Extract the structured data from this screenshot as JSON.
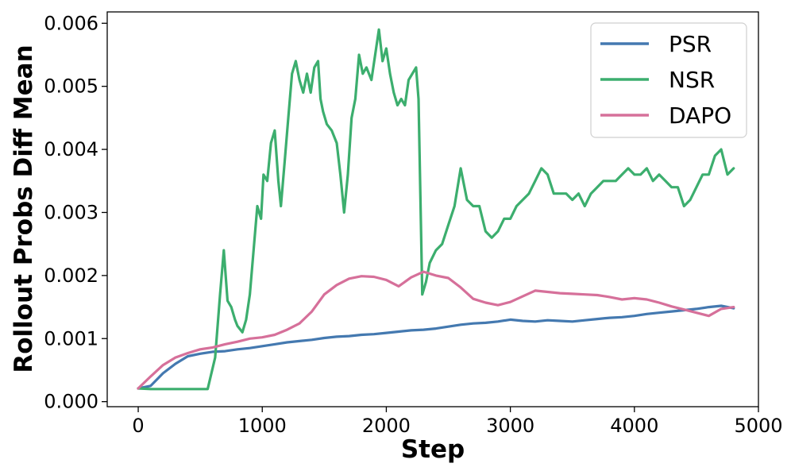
{
  "chart_data": {
    "type": "line",
    "title": "",
    "xlabel": "Step",
    "ylabel": "Rollout Probs Diff Mean",
    "xlim": [
      -250,
      5000
    ],
    "ylim": [
      -8e-05,
      0.00618
    ],
    "xticks": [
      0,
      1000,
      2000,
      3000,
      4000,
      5000
    ],
    "xtick_labels": [
      "0",
      "1000",
      "2000",
      "3000",
      "4000",
      "5000"
    ],
    "yticks": [
      0,
      0.001,
      0.002,
      0.003,
      0.004,
      0.005,
      0.006
    ],
    "ytick_labels": [
      "0.000",
      "0.001",
      "0.002",
      "0.003",
      "0.004",
      "0.005",
      "0.006"
    ],
    "grid": false,
    "legend": "top-right",
    "series": [
      {
        "name": "PSR",
        "color": "#4479b0",
        "points": [
          [
            0,
            0.00021
          ],
          [
            100,
            0.00025
          ],
          [
            200,
            0.00045
          ],
          [
            300,
            0.0006
          ],
          [
            400,
            0.00072
          ],
          [
            500,
            0.00076
          ],
          [
            600,
            0.00079
          ],
          [
            700,
            0.0008
          ],
          [
            800,
            0.00083
          ],
          [
            900,
            0.00085
          ],
          [
            1000,
            0.00088
          ],
          [
            1100,
            0.00091
          ],
          [
            1200,
            0.00094
          ],
          [
            1300,
            0.00096
          ],
          [
            1400,
            0.00098
          ],
          [
            1500,
            0.00101
          ],
          [
            1600,
            0.00103
          ],
          [
            1700,
            0.00104
          ],
          [
            1800,
            0.00106
          ],
          [
            1900,
            0.00107
          ],
          [
            2000,
            0.00109
          ],
          [
            2100,
            0.00111
          ],
          [
            2200,
            0.00113
          ],
          [
            2300,
            0.00114
          ],
          [
            2400,
            0.00116
          ],
          [
            2500,
            0.00119
          ],
          [
            2600,
            0.00122
          ],
          [
            2700,
            0.00124
          ],
          [
            2800,
            0.00125
          ],
          [
            2900,
            0.00127
          ],
          [
            3000,
            0.0013
          ],
          [
            3100,
            0.00128
          ],
          [
            3200,
            0.00127
          ],
          [
            3300,
            0.00129
          ],
          [
            3400,
            0.00128
          ],
          [
            3500,
            0.00127
          ],
          [
            3600,
            0.00129
          ],
          [
            3700,
            0.00131
          ],
          [
            3800,
            0.00133
          ],
          [
            3900,
            0.00134
          ],
          [
            4000,
            0.00136
          ],
          [
            4100,
            0.00139
          ],
          [
            4200,
            0.00141
          ],
          [
            4300,
            0.00143
          ],
          [
            4400,
            0.00145
          ],
          [
            4500,
            0.00147
          ],
          [
            4600,
            0.0015
          ],
          [
            4700,
            0.00152
          ],
          [
            4800,
            0.00148
          ]
        ]
      },
      {
        "name": "NSR",
        "color": "#3cae6e",
        "points": [
          [
            0,
            0.00021
          ],
          [
            100,
            0.0002
          ],
          [
            200,
            0.0002
          ],
          [
            300,
            0.0002
          ],
          [
            400,
            0.0002
          ],
          [
            500,
            0.0002
          ],
          [
            560,
            0.0002
          ],
          [
            620,
            0.0007
          ],
          [
            660,
            0.0017
          ],
          [
            690,
            0.0024
          ],
          [
            720,
            0.0016
          ],
          [
            750,
            0.0015
          ],
          [
            780,
            0.0013
          ],
          [
            800,
            0.0012
          ],
          [
            840,
            0.0011
          ],
          [
            870,
            0.0013
          ],
          [
            900,
            0.0017
          ],
          [
            930,
            0.0024
          ],
          [
            960,
            0.0031
          ],
          [
            990,
            0.0029
          ],
          [
            1010,
            0.0036
          ],
          [
            1040,
            0.0035
          ],
          [
            1070,
            0.0041
          ],
          [
            1100,
            0.0043
          ],
          [
            1130,
            0.0035
          ],
          [
            1150,
            0.0031
          ],
          [
            1180,
            0.0038
          ],
          [
            1210,
            0.0045
          ],
          [
            1240,
            0.0052
          ],
          [
            1270,
            0.0054
          ],
          [
            1300,
            0.0051
          ],
          [
            1330,
            0.0049
          ],
          [
            1360,
            0.0052
          ],
          [
            1390,
            0.0049
          ],
          [
            1420,
            0.0053
          ],
          [
            1450,
            0.0054
          ],
          [
            1470,
            0.0048
          ],
          [
            1490,
            0.0046
          ],
          [
            1520,
            0.0044
          ],
          [
            1560,
            0.0043
          ],
          [
            1600,
            0.0041
          ],
          [
            1630,
            0.0036
          ],
          [
            1660,
            0.003
          ],
          [
            1690,
            0.0036
          ],
          [
            1720,
            0.0045
          ],
          [
            1750,
            0.0048
          ],
          [
            1780,
            0.0055
          ],
          [
            1810,
            0.0052
          ],
          [
            1840,
            0.0053
          ],
          [
            1880,
            0.0051
          ],
          [
            1910,
            0.0055
          ],
          [
            1940,
            0.0059
          ],
          [
            1970,
            0.0054
          ],
          [
            2000,
            0.0056
          ],
          [
            2030,
            0.0052
          ],
          [
            2060,
            0.0049
          ],
          [
            2090,
            0.0047
          ],
          [
            2120,
            0.0048
          ],
          [
            2150,
            0.0047
          ],
          [
            2180,
            0.0051
          ],
          [
            2210,
            0.0052
          ],
          [
            2240,
            0.0053
          ],
          [
            2260,
            0.0048
          ],
          [
            2290,
            0.0017
          ],
          [
            2320,
            0.0019
          ],
          [
            2350,
            0.0022
          ],
          [
            2400,
            0.0024
          ],
          [
            2450,
            0.0025
          ],
          [
            2500,
            0.0028
          ],
          [
            2550,
            0.0031
          ],
          [
            2600,
            0.0037
          ],
          [
            2650,
            0.0032
          ],
          [
            2700,
            0.0031
          ],
          [
            2750,
            0.0031
          ],
          [
            2800,
            0.0027
          ],
          [
            2850,
            0.0026
          ],
          [
            2900,
            0.0027
          ],
          [
            2950,
            0.0029
          ],
          [
            3000,
            0.0029
          ],
          [
            3050,
            0.0031
          ],
          [
            3100,
            0.0032
          ],
          [
            3150,
            0.0033
          ],
          [
            3200,
            0.0035
          ],
          [
            3250,
            0.0037
          ],
          [
            3300,
            0.0036
          ],
          [
            3350,
            0.0033
          ],
          [
            3400,
            0.0033
          ],
          [
            3450,
            0.0033
          ],
          [
            3500,
            0.0032
          ],
          [
            3550,
            0.0033
          ],
          [
            3600,
            0.0031
          ],
          [
            3650,
            0.0033
          ],
          [
            3700,
            0.0034
          ],
          [
            3750,
            0.0035
          ],
          [
            3800,
            0.0035
          ],
          [
            3850,
            0.0035
          ],
          [
            3900,
            0.0036
          ],
          [
            3950,
            0.0037
          ],
          [
            4000,
            0.0036
          ],
          [
            4050,
            0.0036
          ],
          [
            4100,
            0.0037
          ],
          [
            4150,
            0.0035
          ],
          [
            4200,
            0.0036
          ],
          [
            4250,
            0.0035
          ],
          [
            4300,
            0.0034
          ],
          [
            4350,
            0.0034
          ],
          [
            4400,
            0.0031
          ],
          [
            4450,
            0.0032
          ],
          [
            4500,
            0.0034
          ],
          [
            4550,
            0.0036
          ],
          [
            4600,
            0.0036
          ],
          [
            4650,
            0.0039
          ],
          [
            4700,
            0.004
          ],
          [
            4750,
            0.0036
          ],
          [
            4800,
            0.0037
          ]
        ]
      },
      {
        "name": "DAPO",
        "color": "#d6709a",
        "points": [
          [
            0,
            0.00021
          ],
          [
            100,
            0.0004
          ],
          [
            200,
            0.00058
          ],
          [
            300,
            0.0007
          ],
          [
            400,
            0.00077
          ],
          [
            500,
            0.00083
          ],
          [
            600,
            0.00086
          ],
          [
            700,
            0.00091
          ],
          [
            800,
            0.00095
          ],
          [
            900,
            0.001
          ],
          [
            1000,
            0.00102
          ],
          [
            1100,
            0.00106
          ],
          [
            1200,
            0.00114
          ],
          [
            1300,
            0.00124
          ],
          [
            1400,
            0.00143
          ],
          [
            1500,
            0.0017
          ],
          [
            1600,
            0.00185
          ],
          [
            1700,
            0.00195
          ],
          [
            1800,
            0.00199
          ],
          [
            1900,
            0.00198
          ],
          [
            2000,
            0.00193
          ],
          [
            2100,
            0.00183
          ],
          [
            2200,
            0.00197
          ],
          [
            2300,
            0.00206
          ],
          [
            2400,
            0.002
          ],
          [
            2500,
            0.00196
          ],
          [
            2600,
            0.00181
          ],
          [
            2700,
            0.00163
          ],
          [
            2800,
            0.00157
          ],
          [
            2900,
            0.00153
          ],
          [
            3000,
            0.00158
          ],
          [
            3100,
            0.00167
          ],
          [
            3200,
            0.00176
          ],
          [
            3300,
            0.00174
          ],
          [
            3400,
            0.00172
          ],
          [
            3500,
            0.00171
          ],
          [
            3600,
            0.0017
          ],
          [
            3700,
            0.00169
          ],
          [
            3800,
            0.00166
          ],
          [
            3900,
            0.00162
          ],
          [
            4000,
            0.00164
          ],
          [
            4100,
            0.00162
          ],
          [
            4200,
            0.00157
          ],
          [
            4300,
            0.00151
          ],
          [
            4400,
            0.00146
          ],
          [
            4500,
            0.00141
          ],
          [
            4600,
            0.00136
          ],
          [
            4700,
            0.00147
          ],
          [
            4800,
            0.0015
          ]
        ]
      }
    ]
  }
}
